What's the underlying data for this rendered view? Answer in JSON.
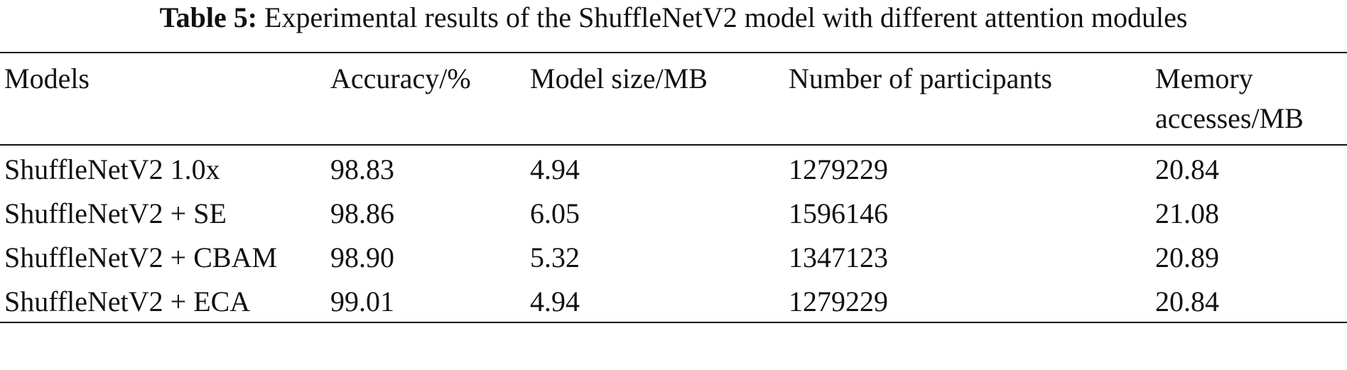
{
  "caption": {
    "label": "Table 5:",
    "text": "Experimental results of the ShuffleNetV2 model with different attention modules"
  },
  "table": {
    "columns": [
      "Models",
      "Accuracy/%",
      "Model size/MB",
      "Number of participants",
      "Memory accesses/MB"
    ],
    "rows": [
      [
        "ShuffleNetV2 1.0x",
        "98.83",
        "4.94",
        "1279229",
        "20.84"
      ],
      [
        "ShuffleNetV2 + SE",
        "98.86",
        "6.05",
        "1596146",
        "21.08"
      ],
      [
        "ShuffleNetV2 + CBAM",
        "98.90",
        "5.32",
        "1347123",
        "20.89"
      ],
      [
        "ShuffleNetV2 + ECA",
        "99.01",
        "4.94",
        "1279229",
        "20.84"
      ]
    ]
  }
}
